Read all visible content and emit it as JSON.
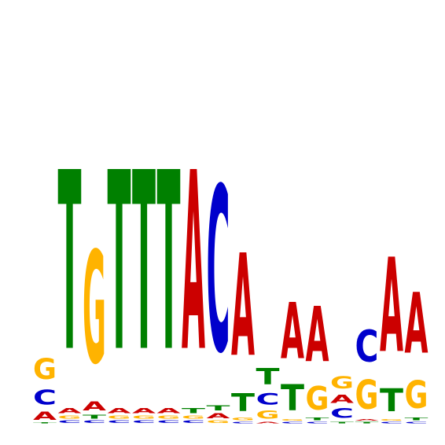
{
  "chart_data": {
    "type": "sequence-logo",
    "colors": {
      "A": "#cc0000",
      "C": "#0000cc",
      "G": "#ffb300",
      "T": "#008000"
    },
    "positions": [
      [
        [
          "T",
          0.01
        ],
        [
          "A",
          0.1
        ],
        [
          "C",
          0.18
        ],
        [
          "G",
          0.26
        ]
      ],
      [
        [
          "C",
          0.03
        ],
        [
          "G",
          0.04
        ],
        [
          "A",
          0.06
        ],
        [
          "T",
          2.2
        ]
      ],
      [
        [
          "C",
          0.03
        ],
        [
          "T",
          0.05
        ],
        [
          "A",
          0.11
        ],
        [
          "G",
          1.38
        ]
      ],
      [
        [
          "C",
          0.03
        ],
        [
          "G",
          0.04
        ],
        [
          "A",
          0.06
        ],
        [
          "T",
          2.2
        ]
      ],
      [
        [
          "C",
          0.03
        ],
        [
          "G",
          0.04
        ],
        [
          "A",
          0.06
        ],
        [
          "T",
          2.2
        ]
      ],
      [
        [
          "C",
          0.03
        ],
        [
          "G",
          0.04
        ],
        [
          "A",
          0.06
        ],
        [
          "T",
          2.2
        ]
      ],
      [
        [
          "C",
          0.03
        ],
        [
          "G",
          0.04
        ],
        [
          "T",
          0.06
        ],
        [
          "A",
          2.2
        ]
      ],
      [
        [
          "G",
          0.03
        ],
        [
          "A",
          0.06
        ],
        [
          "T",
          0.06
        ],
        [
          "C",
          2.03
        ]
      ],
      [
        [
          "C",
          0.02
        ],
        [
          "G",
          0.03
        ],
        [
          "T",
          0.22
        ],
        [
          "A",
          1.26
        ]
      ],
      [
        [
          "A",
          0.02
        ],
        [
          "G",
          0.1
        ],
        [
          "C",
          0.14
        ],
        [
          "T",
          0.2
        ]
      ],
      [
        [
          "C",
          0.02
        ],
        [
          "G",
          0.02
        ],
        [
          "T",
          0.32
        ],
        [
          "A",
          0.69
        ]
      ],
      [
        [
          "C",
          0.02
        ],
        [
          "T",
          0.03
        ],
        [
          "G",
          0.29
        ],
        [
          "A",
          0.68
        ]
      ],
      [
        [
          "T",
          0.02
        ],
        [
          "C",
          0.12
        ],
        [
          "A",
          0.1
        ],
        [
          "G",
          0.15
        ]
      ],
      [
        [
          "T",
          0.02
        ],
        [
          "A",
          0.02
        ],
        [
          "G",
          0.36
        ],
        [
          "C",
          0.39
        ]
      ],
      [
        [
          "C",
          0.02
        ],
        [
          "G",
          0.02
        ],
        [
          "T",
          0.28
        ],
        [
          "A",
          1.16
        ]
      ],
      [
        [
          "C",
          0.02
        ],
        [
          "T",
          0.03
        ],
        [
          "G",
          0.34
        ],
        [
          "A",
          0.75
        ]
      ]
    ]
  }
}
